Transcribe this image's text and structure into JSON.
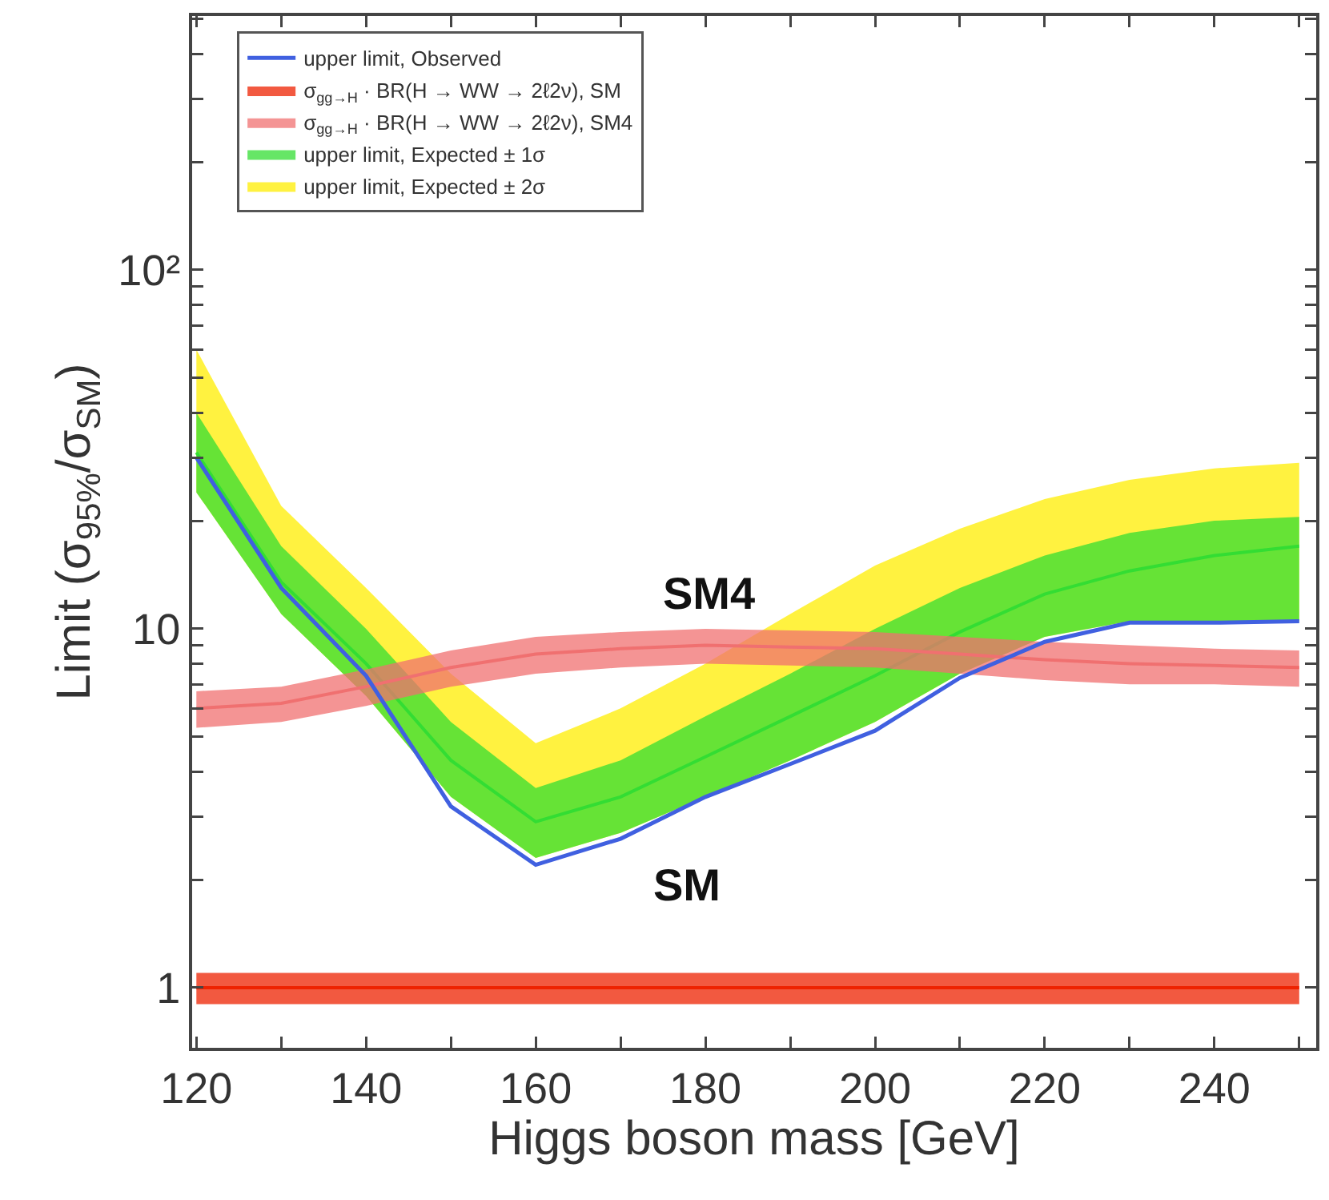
{
  "chart_data": {
    "type": "line",
    "xlabel": "Higgs boson mass [GeV]",
    "ylabel": "Limit (σ$_{95%}$/σ$_{SM}$)",
    "x": [
      120,
      130,
      140,
      150,
      160,
      170,
      180,
      190,
      200,
      210,
      220,
      230,
      240,
      250
    ],
    "xlim": [
      119.5,
      252
    ],
    "xticks": [
      120,
      {
        "value": 130,
        "label": null
      },
      140,
      {
        "value": 150,
        "label": null
      },
      160,
      {
        "value": 170,
        "label": null
      },
      180,
      {
        "value": 190,
        "label": null
      },
      200,
      {
        "value": 210,
        "label": null
      },
      220,
      {
        "value": 230,
        "label": null
      },
      240,
      {
        "value": 250,
        "label": null
      }
    ],
    "log": true,
    "ylim": [
      0.68,
      510
    ],
    "yticks": [
      1,
      {
        "value": 2,
        "label": null
      },
      {
        "value": 3,
        "label": null
      },
      {
        "value": 4,
        "label": null
      },
      {
        "value": 5,
        "label": null
      },
      {
        "value": 6,
        "label": null
      },
      {
        "value": 7,
        "label": null
      },
      {
        "value": 8,
        "label": null
      },
      {
        "value": 9,
        "label": null
      },
      10,
      {
        "value": 20,
        "label": null
      },
      {
        "value": 30,
        "label": null
      },
      {
        "value": 40,
        "label": null
      },
      {
        "value": 50,
        "label": null
      },
      {
        "value": 60,
        "label": null
      },
      {
        "value": 70,
        "label": null
      },
      {
        "value": 80,
        "label": null
      },
      {
        "value": 90,
        "label": null
      },
      {
        "value": 100,
        "label": "10²"
      },
      {
        "value": 200,
        "label": null
      },
      {
        "value": 300,
        "label": null
      },
      {
        "value": 400,
        "label": null
      },
      {
        "value": 500,
        "label": null
      }
    ],
    "grid": false,
    "legend": "top left",
    "series": [
      {
        "name": "upper limit, Observed",
        "color": "#4060e0",
        "values": [
          30,
          13,
          7.4,
          3.2,
          2.2,
          2.6,
          3.4,
          4.2,
          5.2,
          7.3,
          9.2,
          10.4,
          10.4,
          10.5
        ]
      },
      {
        "name": "σ$_{gg→H}$ · BR(H → WW → 2ℓ2ν), SM",
        "color": "#ee2200",
        "values": [
          1,
          1,
          1,
          1,
          1,
          1,
          1,
          1,
          1,
          1,
          1,
          1,
          1,
          1
        ],
        "lower": [
          0.9,
          0.9,
          0.9,
          0.9,
          0.9,
          0.9,
          0.9,
          0.9,
          0.9,
          0.9,
          0.9,
          0.9,
          0.9,
          0.9
        ],
        "upper": [
          1.1,
          1.1,
          1.1,
          1.1,
          1.1,
          1.1,
          1.1,
          1.1,
          1.1,
          1.1,
          1.1,
          1.1,
          1.1,
          1.1
        ]
      },
      {
        "name": "σ$_{gg→H}$ · BR(H → WW → 2ℓ2ν), SM4",
        "color": "#f07070",
        "values": [
          6,
          6.2,
          6.9,
          7.8,
          8.5,
          8.8,
          9,
          8.9,
          8.8,
          8.5,
          8.2,
          8,
          7.9,
          7.8
        ],
        "lower": [
          5.3,
          5.5,
          6.1,
          6.9,
          7.5,
          7.8,
          8,
          7.9,
          7.8,
          7.5,
          7.2,
          7,
          7,
          6.9
        ],
        "upper": [
          6.7,
          6.9,
          7.7,
          8.7,
          9.5,
          9.8,
          10,
          9.9,
          9.8,
          9.5,
          9.2,
          9,
          8.8,
          8.7
        ]
      },
      {
        "name": "upper limit, Expected ± 1σ",
        "color": "#33dd33",
        "values": [
          31,
          13.5,
          8,
          4.3,
          2.9,
          3.4,
          4.4,
          5.7,
          7.4,
          9.8,
          12.5,
          14.5,
          16,
          17
        ],
        "lower": [
          24,
          11,
          6.5,
          3.4,
          2.3,
          2.7,
          3.4,
          4.3,
          5.5,
          7.5,
          9.5,
          10.5,
          10.5,
          10.5
        ],
        "upper": [
          40,
          17,
          10,
          5.5,
          3.6,
          4.3,
          5.7,
          7.5,
          10,
          13,
          16,
          18.5,
          20,
          20.5
        ]
      },
      {
        "name": "upper limit, Expected ± 2σ",
        "color": "#ffee00",
        "values": [
          null,
          null,
          null,
          null,
          null,
          null,
          null,
          null,
          null,
          null,
          null,
          null,
          null,
          null
        ],
        "lower": [
          24,
          11,
          6.5,
          3.4,
          2.3,
          2.7,
          3.4,
          4.3,
          5.5,
          7.5,
          9.5,
          10.5,
          10.5,
          10.5
        ],
        "upper": [
          60,
          22,
          13,
          7.5,
          4.8,
          6,
          8,
          11,
          15,
          19,
          23,
          26,
          28,
          29
        ]
      }
    ],
    "annotations": [
      "SM4",
      "SM"
    ]
  }
}
